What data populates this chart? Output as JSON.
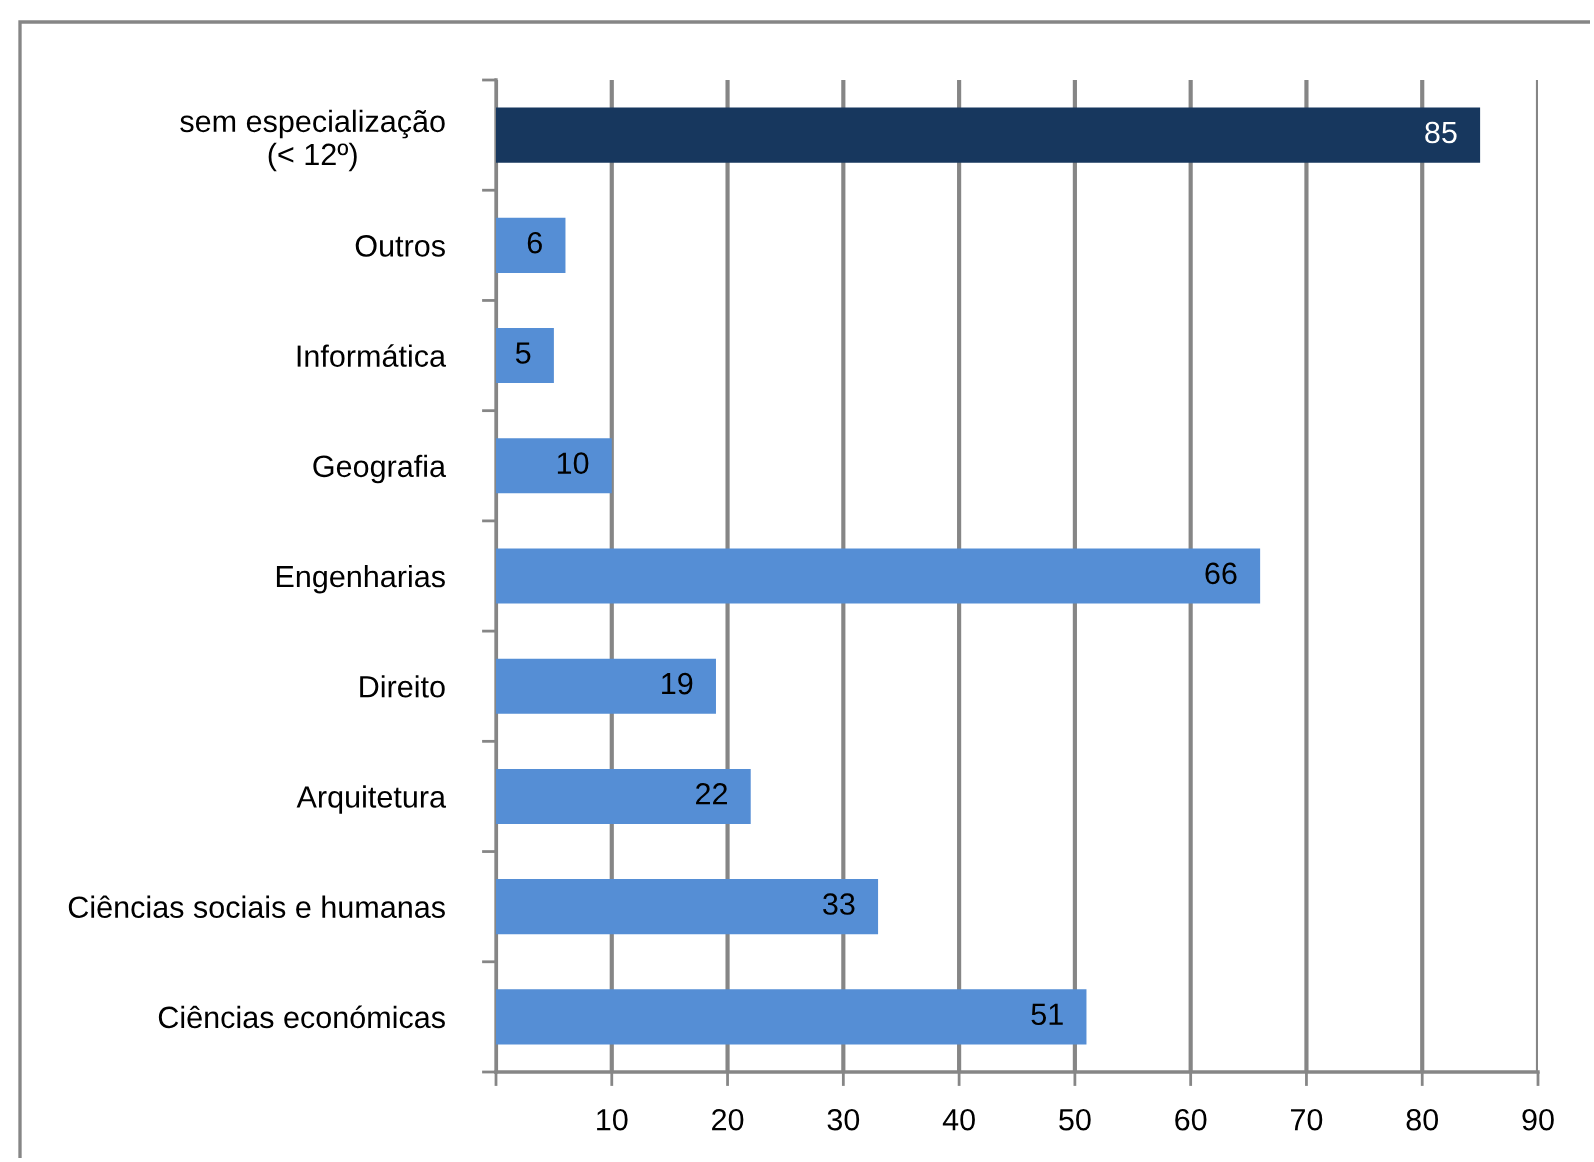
{
  "chart_data": {
    "type": "bar",
    "orientation": "horizontal",
    "categories": [
      "sem especialização\n(< 12º)",
      "Outros",
      "Informática",
      "Geografia",
      "Engenharias",
      "Direito",
      "Arquitetura",
      "Ciências sociais e humanas",
      "Ciências económicas"
    ],
    "values": [
      85,
      6,
      5,
      10,
      66,
      19,
      22,
      33,
      51
    ],
    "colors": [
      "#17375e",
      "#558ed5",
      "#558ed5",
      "#558ed5",
      "#558ed5",
      "#558ed5",
      "#558ed5",
      "#558ed5",
      "#558ed5"
    ],
    "xlim": [
      0,
      90
    ],
    "xticks": [
      {
        "value": 0,
        "label": null
      },
      10,
      20,
      30,
      40,
      50,
      60,
      70,
      80,
      90
    ],
    "grid": "x",
    "legend": false,
    "data_labels": true
  }
}
